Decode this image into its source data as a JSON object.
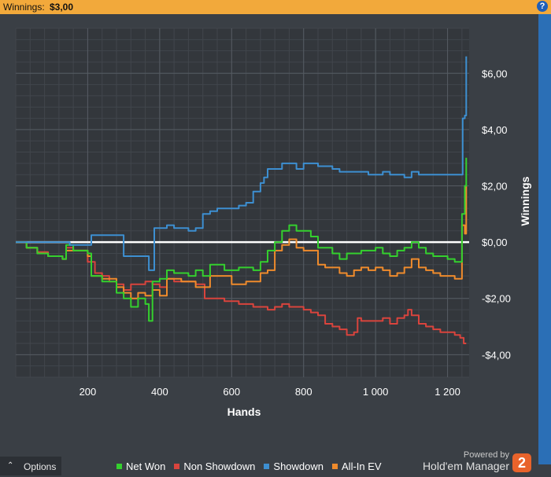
{
  "header": {
    "label": "Winnings:",
    "value": "$3,00",
    "help_icon": "question-icon"
  },
  "footer": {
    "options_label": "Options",
    "options_icon": "chevron-up-icon",
    "powered_by": "Powered by",
    "brand": "Hold'em Manager",
    "brand_logo": "2"
  },
  "colors": {
    "net_won": "#34d02e",
    "non_showdown": "#d9443d",
    "showdown": "#3d8fd1",
    "all_in_ev": "#ef8b2c",
    "zero_line": "#ffffff",
    "header_bg": "#f2a93b"
  },
  "chart_data": {
    "type": "line",
    "xlabel": "Hands",
    "ylabel": "Winnings",
    "xlim": [
      0,
      1260
    ],
    "ylim": [
      -4.8,
      7.6
    ],
    "x_ticks": [
      200,
      400,
      600,
      800,
      1000,
      1200
    ],
    "x_tick_labels": [
      "200",
      "400",
      "600",
      "800",
      "1 000",
      "1 200"
    ],
    "y_ticks": [
      -4,
      -2,
      0,
      2,
      4,
      6
    ],
    "y_tick_labels": [
      "-$4,00",
      "-$2,00",
      "$0,00",
      "$2,00",
      "$4,00",
      "$6,00"
    ],
    "grid": true,
    "legend_position": "bottom",
    "series": [
      {
        "name": "Net Won",
        "color": "#34d02e",
        "points": [
          [
            0,
            0
          ],
          [
            30,
            -0.2
          ],
          [
            60,
            -0.4
          ],
          [
            90,
            -0.5
          ],
          [
            130,
            -0.6
          ],
          [
            140,
            -0.1
          ],
          [
            160,
            -0.3
          ],
          [
            200,
            -0.4
          ],
          [
            210,
            -1.2
          ],
          [
            240,
            -1.4
          ],
          [
            260,
            -1.4
          ],
          [
            280,
            -1.8
          ],
          [
            300,
            -2.0
          ],
          [
            320,
            -2.3
          ],
          [
            340,
            -2.0
          ],
          [
            360,
            -2.2
          ],
          [
            370,
            -2.8
          ],
          [
            380,
            -1.4
          ],
          [
            400,
            -1.3
          ],
          [
            420,
            -1.0
          ],
          [
            440,
            -1.1
          ],
          [
            460,
            -1.1
          ],
          [
            480,
            -1.2
          ],
          [
            500,
            -1.0
          ],
          [
            520,
            -1.2
          ],
          [
            540,
            -0.8
          ],
          [
            560,
            -0.8
          ],
          [
            580,
            -1.0
          ],
          [
            600,
            -1.0
          ],
          [
            620,
            -0.9
          ],
          [
            640,
            -0.9
          ],
          [
            660,
            -1.0
          ],
          [
            680,
            -0.7
          ],
          [
            700,
            -0.3
          ],
          [
            720,
            0.0
          ],
          [
            740,
            0.4
          ],
          [
            760,
            0.6
          ],
          [
            780,
            0.4
          ],
          [
            800,
            0.4
          ],
          [
            820,
            0.2
          ],
          [
            840,
            -0.2
          ],
          [
            860,
            -0.2
          ],
          [
            880,
            -0.4
          ],
          [
            900,
            -0.6
          ],
          [
            920,
            -0.4
          ],
          [
            940,
            -0.4
          ],
          [
            960,
            -0.3
          ],
          [
            980,
            -0.3
          ],
          [
            1000,
            -0.2
          ],
          [
            1020,
            -0.4
          ],
          [
            1040,
            -0.5
          ],
          [
            1060,
            -0.3
          ],
          [
            1080,
            -0.2
          ],
          [
            1100,
            0.0
          ],
          [
            1120,
            -0.2
          ],
          [
            1140,
            -0.4
          ],
          [
            1160,
            -0.5
          ],
          [
            1180,
            -0.5
          ],
          [
            1200,
            -0.6
          ],
          [
            1220,
            -0.7
          ],
          [
            1235,
            -0.7
          ],
          [
            1240,
            1.0
          ],
          [
            1248,
            2.0
          ],
          [
            1252,
            3.0
          ]
        ]
      },
      {
        "name": "Non Showdown",
        "color": "#d9443d",
        "points": [
          [
            0,
            0
          ],
          [
            30,
            -0.2
          ],
          [
            60,
            -0.35
          ],
          [
            90,
            -0.5
          ],
          [
            130,
            -0.6
          ],
          [
            140,
            -0.2
          ],
          [
            160,
            -0.3
          ],
          [
            200,
            -0.7
          ],
          [
            220,
            -1.1
          ],
          [
            240,
            -1.2
          ],
          [
            260,
            -1.4
          ],
          [
            280,
            -1.5
          ],
          [
            300,
            -1.7
          ],
          [
            320,
            -1.5
          ],
          [
            340,
            -1.5
          ],
          [
            360,
            -1.4
          ],
          [
            380,
            -1.5
          ],
          [
            400,
            -1.6
          ],
          [
            420,
            -1.3
          ],
          [
            440,
            -1.4
          ],
          [
            460,
            -1.4
          ],
          [
            480,
            -1.4
          ],
          [
            500,
            -1.5
          ],
          [
            520,
            -1.5
          ],
          [
            525,
            -2.0
          ],
          [
            540,
            -2.0
          ],
          [
            560,
            -2.0
          ],
          [
            580,
            -2.1
          ],
          [
            600,
            -2.1
          ],
          [
            620,
            -2.2
          ],
          [
            640,
            -2.2
          ],
          [
            660,
            -2.3
          ],
          [
            680,
            -2.3
          ],
          [
            700,
            -2.4
          ],
          [
            720,
            -2.3
          ],
          [
            740,
            -2.2
          ],
          [
            760,
            -2.3
          ],
          [
            780,
            -2.3
          ],
          [
            800,
            -2.4
          ],
          [
            820,
            -2.5
          ],
          [
            840,
            -2.6
          ],
          [
            860,
            -2.9
          ],
          [
            880,
            -3.0
          ],
          [
            900,
            -3.1
          ],
          [
            920,
            -3.3
          ],
          [
            940,
            -3.2
          ],
          [
            950,
            -2.7
          ],
          [
            960,
            -2.8
          ],
          [
            980,
            -2.8
          ],
          [
            1000,
            -2.8
          ],
          [
            1020,
            -2.7
          ],
          [
            1040,
            -2.9
          ],
          [
            1060,
            -2.7
          ],
          [
            1080,
            -2.6
          ],
          [
            1090,
            -2.4
          ],
          [
            1100,
            -2.6
          ],
          [
            1120,
            -2.9
          ],
          [
            1140,
            -3.0
          ],
          [
            1160,
            -3.1
          ],
          [
            1180,
            -3.2
          ],
          [
            1200,
            -3.2
          ],
          [
            1220,
            -3.3
          ],
          [
            1235,
            -3.4
          ],
          [
            1245,
            -3.6
          ],
          [
            1252,
            -3.6
          ]
        ]
      },
      {
        "name": "Showdown",
        "color": "#3d8fd1",
        "points": [
          [
            0,
            0
          ],
          [
            140,
            0
          ],
          [
            150,
            -0.1
          ],
          [
            200,
            -0.1
          ],
          [
            210,
            0.25
          ],
          [
            260,
            0.25
          ],
          [
            290,
            0.25
          ],
          [
            300,
            -0.5
          ],
          [
            340,
            -0.5
          ],
          [
            360,
            -0.5
          ],
          [
            370,
            -1.0
          ],
          [
            380,
            -1.0
          ],
          [
            385,
            0.5
          ],
          [
            400,
            0.5
          ],
          [
            420,
            0.6
          ],
          [
            440,
            0.5
          ],
          [
            460,
            0.5
          ],
          [
            480,
            0.4
          ],
          [
            500,
            0.5
          ],
          [
            520,
            1.0
          ],
          [
            540,
            1.1
          ],
          [
            560,
            1.2
          ],
          [
            580,
            1.2
          ],
          [
            600,
            1.2
          ],
          [
            620,
            1.3
          ],
          [
            640,
            1.4
          ],
          [
            660,
            1.8
          ],
          [
            680,
            2.1
          ],
          [
            690,
            2.3
          ],
          [
            700,
            2.6
          ],
          [
            720,
            2.6
          ],
          [
            740,
            2.8
          ],
          [
            760,
            2.8
          ],
          [
            780,
            2.6
          ],
          [
            800,
            2.8
          ],
          [
            820,
            2.8
          ],
          [
            840,
            2.7
          ],
          [
            860,
            2.7
          ],
          [
            880,
            2.6
          ],
          [
            900,
            2.5
          ],
          [
            920,
            2.5
          ],
          [
            940,
            2.5
          ],
          [
            960,
            2.5
          ],
          [
            980,
            2.4
          ],
          [
            1000,
            2.4
          ],
          [
            1020,
            2.5
          ],
          [
            1040,
            2.4
          ],
          [
            1060,
            2.4
          ],
          [
            1080,
            2.3
          ],
          [
            1100,
            2.5
          ],
          [
            1120,
            2.4
          ],
          [
            1140,
            2.4
          ],
          [
            1160,
            2.4
          ],
          [
            1180,
            2.4
          ],
          [
            1200,
            2.4
          ],
          [
            1220,
            2.4
          ],
          [
            1235,
            2.4
          ],
          [
            1242,
            4.4
          ],
          [
            1248,
            4.5
          ],
          [
            1252,
            6.6
          ]
        ]
      },
      {
        "name": "All-In EV",
        "color": "#ef8b2c",
        "points": [
          [
            0,
            0
          ],
          [
            30,
            -0.2
          ],
          [
            60,
            -0.4
          ],
          [
            90,
            -0.5
          ],
          [
            130,
            -0.6
          ],
          [
            140,
            -0.3
          ],
          [
            160,
            -0.3
          ],
          [
            200,
            -0.5
          ],
          [
            210,
            -1.2
          ],
          [
            240,
            -1.3
          ],
          [
            260,
            -1.3
          ],
          [
            280,
            -1.6
          ],
          [
            300,
            -1.8
          ],
          [
            320,
            -2.0
          ],
          [
            340,
            -1.8
          ],
          [
            360,
            -1.9
          ],
          [
            380,
            -1.7
          ],
          [
            400,
            -1.9
          ],
          [
            420,
            -1.3
          ],
          [
            440,
            -1.3
          ],
          [
            460,
            -1.4
          ],
          [
            480,
            -1.4
          ],
          [
            500,
            -1.6
          ],
          [
            520,
            -1.6
          ],
          [
            540,
            -1.2
          ],
          [
            560,
            -1.2
          ],
          [
            580,
            -1.2
          ],
          [
            600,
            -1.5
          ],
          [
            620,
            -1.5
          ],
          [
            640,
            -1.4
          ],
          [
            660,
            -1.4
          ],
          [
            680,
            -1.1
          ],
          [
            700,
            -1.0
          ],
          [
            720,
            -0.3
          ],
          [
            740,
            -0.1
          ],
          [
            760,
            0.1
          ],
          [
            780,
            -0.2
          ],
          [
            800,
            -0.3
          ],
          [
            820,
            -0.3
          ],
          [
            840,
            -0.8
          ],
          [
            860,
            -0.9
          ],
          [
            880,
            -0.9
          ],
          [
            900,
            -1.1
          ],
          [
            920,
            -1.2
          ],
          [
            940,
            -1.0
          ],
          [
            960,
            -0.9
          ],
          [
            980,
            -1.0
          ],
          [
            1000,
            -0.9
          ],
          [
            1020,
            -1.0
          ],
          [
            1040,
            -1.2
          ],
          [
            1060,
            -1.1
          ],
          [
            1080,
            -0.9
          ],
          [
            1100,
            -0.6
          ],
          [
            1120,
            -0.9
          ],
          [
            1140,
            -1.0
          ],
          [
            1160,
            -1.1
          ],
          [
            1180,
            -1.2
          ],
          [
            1200,
            -1.2
          ],
          [
            1220,
            -1.3
          ],
          [
            1235,
            -1.3
          ],
          [
            1240,
            0.6
          ],
          [
            1248,
            0.3
          ],
          [
            1252,
            2.0
          ]
        ]
      }
    ]
  }
}
